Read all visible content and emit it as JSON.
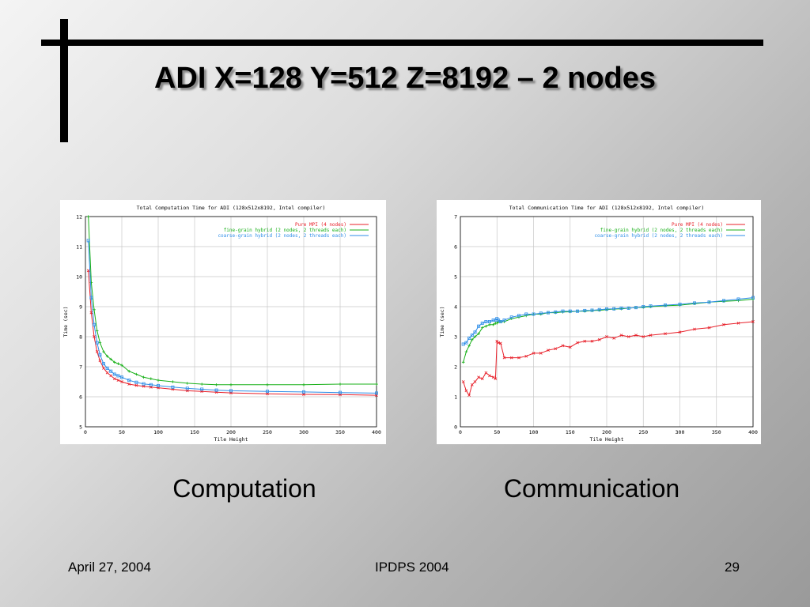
{
  "slide": {
    "title": "ADI X=128 Y=512 Z=8192 – 2 nodes",
    "captions": [
      "Computation",
      "Communication"
    ],
    "footer": {
      "date": "April 27, 2004",
      "venue": "IPDPS 2004",
      "page": "29"
    }
  },
  "colors": {
    "pure_mpi": "#e8202a",
    "fine_grain": "#18b018",
    "coarse_grain": "#2e8ee8"
  },
  "chart_data": [
    {
      "type": "line",
      "title": "Total Computation Time for ADI (128x512x8192, Intel compiler)",
      "xlabel": "Tile Height",
      "ylabel": "Time (sec)",
      "xlim": [
        0,
        400
      ],
      "ylim": [
        5,
        12
      ],
      "xticks": [
        0,
        50,
        100,
        150,
        200,
        250,
        300,
        350,
        400
      ],
      "yticks": [
        5,
        6,
        7,
        8,
        9,
        10,
        11,
        12
      ],
      "grid": true,
      "legend": "top-right",
      "x": [
        4,
        8,
        12,
        16,
        20,
        25,
        30,
        35,
        40,
        45,
        50,
        60,
        70,
        80,
        90,
        100,
        120,
        140,
        160,
        180,
        200,
        250,
        300,
        350,
        400
      ],
      "series": [
        {
          "name": "Pure MPI (4 nodes)",
          "values": [
            10.2,
            8.8,
            8.0,
            7.5,
            7.2,
            6.95,
            6.8,
            6.7,
            6.6,
            6.55,
            6.5,
            6.42,
            6.38,
            6.35,
            6.32,
            6.3,
            6.25,
            6.2,
            6.18,
            6.15,
            6.13,
            6.1,
            6.08,
            6.07,
            6.05
          ]
        },
        {
          "name": "fine-grain hybrid (2 nodes, 2 threads each)",
          "values": [
            12.0,
            9.8,
            8.9,
            8.2,
            7.8,
            7.5,
            7.35,
            7.25,
            7.15,
            7.1,
            7.05,
            6.85,
            6.75,
            6.65,
            6.6,
            6.55,
            6.5,
            6.45,
            6.42,
            6.4,
            6.4,
            6.4,
            6.4,
            6.42,
            6.42
          ]
        },
        {
          "name": "coarse-grain hybrid (2 nodes, 2 threads each)",
          "values": [
            11.2,
            9.3,
            8.4,
            7.8,
            7.4,
            7.1,
            6.95,
            6.85,
            6.75,
            6.7,
            6.65,
            6.55,
            6.48,
            6.43,
            6.4,
            6.37,
            6.32,
            6.28,
            6.25,
            6.22,
            6.2,
            6.18,
            6.16,
            6.14,
            6.12
          ]
        }
      ]
    },
    {
      "type": "line",
      "title": "Total Communication Time for ADI (128x512x8192, Intel compiler)",
      "xlabel": "Tile Height",
      "ylabel": "Time (sec)",
      "xlim": [
        0,
        400
      ],
      "ylim": [
        0,
        7
      ],
      "xticks": [
        0,
        50,
        100,
        150,
        200,
        250,
        300,
        350,
        400
      ],
      "yticks": [
        0,
        1,
        2,
        3,
        4,
        5,
        6,
        7
      ],
      "grid": true,
      "legend": "top-right",
      "x": [
        4,
        8,
        12,
        16,
        20,
        25,
        30,
        35,
        40,
        45,
        48,
        50,
        52,
        55,
        60,
        70,
        80,
        90,
        100,
        110,
        120,
        130,
        140,
        150,
        160,
        170,
        180,
        190,
        200,
        210,
        220,
        230,
        240,
        250,
        260,
        280,
        300,
        320,
        340,
        360,
        380,
        400
      ],
      "series": [
        {
          "name": "Pure MPI (4 nodes)",
          "values": [
            1.5,
            1.2,
            1.05,
            1.4,
            1.5,
            1.65,
            1.6,
            1.8,
            1.7,
            1.65,
            1.6,
            2.85,
            2.8,
            2.78,
            2.3,
            2.3,
            2.3,
            2.35,
            2.45,
            2.45,
            2.55,
            2.6,
            2.7,
            2.65,
            2.8,
            2.85,
            2.85,
            2.9,
            3.0,
            2.95,
            3.05,
            3.0,
            3.05,
            3.0,
            3.05,
            3.1,
            3.15,
            3.25,
            3.3,
            3.4,
            3.45,
            3.5
          ]
        },
        {
          "name": "fine-grain hybrid (2 nodes, 2 threads each)",
          "values": [
            2.15,
            2.5,
            2.7,
            2.9,
            3.0,
            3.1,
            3.3,
            3.35,
            3.4,
            3.4,
            3.45,
            3.45,
            3.5,
            3.5,
            3.5,
            3.6,
            3.65,
            3.7,
            3.75,
            3.75,
            3.8,
            3.8,
            3.82,
            3.83,
            3.85,
            3.85,
            3.87,
            3.88,
            3.9,
            3.92,
            3.93,
            3.95,
            3.97,
            3.98,
            4.0,
            4.03,
            4.05,
            4.1,
            4.15,
            4.18,
            4.2,
            4.25
          ]
        },
        {
          "name": "coarse-grain hybrid (2 nodes, 2 threads each)",
          "values": [
            2.75,
            2.8,
            2.95,
            3.05,
            3.15,
            3.35,
            3.45,
            3.5,
            3.5,
            3.55,
            3.55,
            3.6,
            3.55,
            3.5,
            3.55,
            3.65,
            3.7,
            3.75,
            3.75,
            3.78,
            3.8,
            3.82,
            3.85,
            3.85,
            3.85,
            3.87,
            3.88,
            3.9,
            3.92,
            3.93,
            3.95,
            3.95,
            3.97,
            4.0,
            4.02,
            4.05,
            4.08,
            4.12,
            4.15,
            4.2,
            4.25,
            4.3
          ]
        }
      ]
    }
  ]
}
